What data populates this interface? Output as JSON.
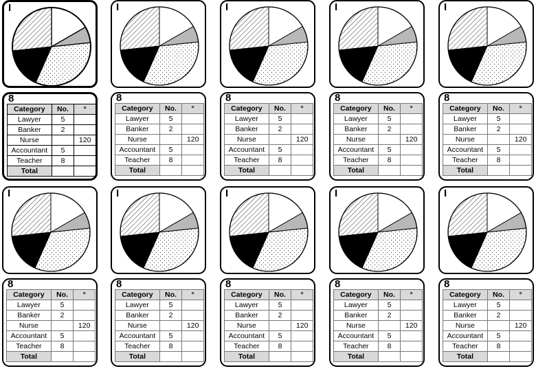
{
  "card_label_pie": "I",
  "card_label_table": "8",
  "pie": {
    "slices": [
      {
        "name": "Lawyer",
        "degrees": 60,
        "fill": "white"
      },
      {
        "name": "Banker",
        "degrees": 24,
        "fill": "grey"
      },
      {
        "name": "Nurse",
        "degrees": 120,
        "fill": "dots"
      },
      {
        "name": "Accountant",
        "degrees": 60,
        "fill": "black"
      },
      {
        "name": "Teacher",
        "degrees": 96,
        "fill": "hatch"
      }
    ]
  },
  "table": {
    "headers": [
      "Category",
      "No.",
      "°"
    ],
    "rows": [
      [
        "Lawyer",
        "5",
        ""
      ],
      [
        "Banker",
        "2",
        ""
      ],
      [
        "Nurse",
        "",
        "120"
      ],
      [
        "Accountant",
        "5",
        ""
      ],
      [
        "Teacher",
        "8",
        ""
      ]
    ],
    "total_label": "Total"
  },
  "colors": {
    "border": "#000000",
    "header_fill": "#d9d9d9",
    "grey_slice": "#b8b8b8"
  }
}
